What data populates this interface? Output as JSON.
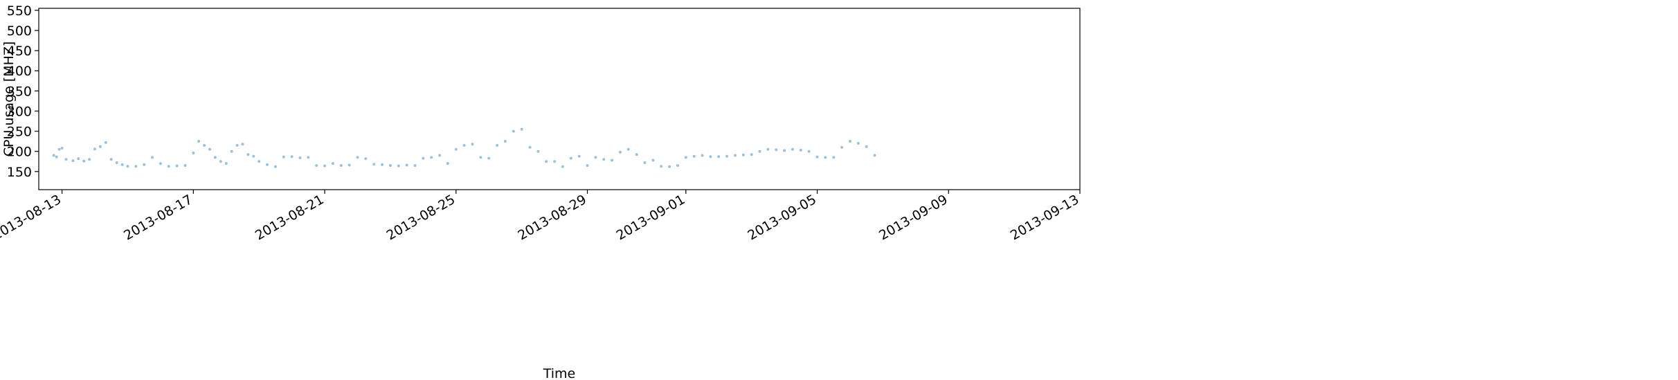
{
  "chart_data": {
    "type": "scatter",
    "title": "",
    "xlabel": "Time",
    "ylabel": "CPU usage [MHZ]",
    "color": "#1f77b4",
    "point_alpha": 0.45,
    "grid": false,
    "legend": "none",
    "xlim": [
      "2013-08-12 07:00",
      "2013-09-13 00:00"
    ],
    "ylim": [
      105,
      555
    ],
    "y_ticks": [
      150,
      200,
      250,
      300,
      350,
      400,
      450,
      500,
      550
    ],
    "x_ticks": [
      "2013-08-13",
      "2013-08-17",
      "2013-08-21",
      "2013-08-25",
      "2013-08-29",
      "2013-09-01",
      "2013-09-05",
      "2013-09-09",
      "2013-09-13"
    ],
    "series": [
      {
        "points": [
          [
            "2013-08-12 18:00",
            190
          ],
          [
            "2013-08-12 20:00",
            186
          ],
          [
            "2013-08-12 22:00",
            205
          ],
          [
            "2013-08-13 00:00",
            208
          ],
          [
            "2013-08-13 03:00",
            180
          ],
          [
            "2013-08-13 08:00",
            177
          ],
          [
            "2013-08-13 12:00",
            182
          ],
          [
            "2013-08-13 16:00",
            176
          ],
          [
            "2013-08-13 20:00",
            180
          ],
          [
            "2013-08-14 00:00",
            206
          ],
          [
            "2013-08-14 04:00",
            212
          ],
          [
            "2013-08-14 08:00",
            222
          ],
          [
            "2013-08-14 12:00",
            180
          ],
          [
            "2013-08-14 16:00",
            172
          ],
          [
            "2013-08-14 20:00",
            167
          ],
          [
            "2013-08-15 00:00",
            163
          ],
          [
            "2013-08-15 06:00",
            163
          ],
          [
            "2013-08-15 12:00",
            167
          ],
          [
            "2013-08-15 18:00",
            185
          ],
          [
            "2013-08-16 00:00",
            170
          ],
          [
            "2013-08-16 06:00",
            163
          ],
          [
            "2013-08-16 12:00",
            164
          ],
          [
            "2013-08-16 18:00",
            165
          ],
          [
            "2013-08-17 00:00",
            196
          ],
          [
            "2013-08-17 04:00",
            225
          ],
          [
            "2013-08-17 08:00",
            215
          ],
          [
            "2013-08-17 12:00",
            205
          ],
          [
            "2013-08-17 16:00",
            185
          ],
          [
            "2013-08-17 20:00",
            175
          ],
          [
            "2013-08-18 00:00",
            170
          ],
          [
            "2013-08-18 04:00",
            200
          ],
          [
            "2013-08-18 08:00",
            215
          ],
          [
            "2013-08-18 12:00",
            218
          ],
          [
            "2013-08-18 16:00",
            192
          ],
          [
            "2013-08-18 20:00",
            188
          ],
          [
            "2013-08-19 00:00",
            175
          ],
          [
            "2013-08-19 06:00",
            167
          ],
          [
            "2013-08-19 12:00",
            162
          ],
          [
            "2013-08-19 18:00",
            186
          ],
          [
            "2013-08-20 00:00",
            187
          ],
          [
            "2013-08-20 06:00",
            184
          ],
          [
            "2013-08-20 12:00",
            185
          ],
          [
            "2013-08-20 18:00",
            165
          ],
          [
            "2013-08-21 00:00",
            164
          ],
          [
            "2013-08-21 06:00",
            170
          ],
          [
            "2013-08-21 12:00",
            165
          ],
          [
            "2013-08-21 18:00",
            166
          ],
          [
            "2013-08-22 00:00",
            185
          ],
          [
            "2013-08-22 06:00",
            182
          ],
          [
            "2013-08-22 12:00",
            168
          ],
          [
            "2013-08-22 18:00",
            167
          ],
          [
            "2013-08-23 00:00",
            165
          ],
          [
            "2013-08-23 06:00",
            164
          ],
          [
            "2013-08-23 12:00",
            166
          ],
          [
            "2013-08-23 18:00",
            165
          ],
          [
            "2013-08-24 00:00",
            183
          ],
          [
            "2013-08-24 06:00",
            185
          ],
          [
            "2013-08-24 12:00",
            190
          ],
          [
            "2013-08-24 18:00",
            170
          ],
          [
            "2013-08-25 00:00",
            205
          ],
          [
            "2013-08-25 06:00",
            215
          ],
          [
            "2013-08-25 12:00",
            218
          ],
          [
            "2013-08-25 18:00",
            185
          ],
          [
            "2013-08-26 00:00",
            183
          ],
          [
            "2013-08-26 06:00",
            215
          ],
          [
            "2013-08-26 12:00",
            225
          ],
          [
            "2013-08-26 18:00",
            250
          ],
          [
            "2013-08-27 00:00",
            255
          ],
          [
            "2013-08-27 06:00",
            210
          ],
          [
            "2013-08-27 12:00",
            200
          ],
          [
            "2013-08-27 18:00",
            175
          ],
          [
            "2013-08-28 00:00",
            175
          ],
          [
            "2013-08-28 06:00",
            162
          ],
          [
            "2013-08-28 12:00",
            183
          ],
          [
            "2013-08-28 18:00",
            188
          ],
          [
            "2013-08-29 00:00",
            165
          ],
          [
            "2013-08-29 06:00",
            185
          ],
          [
            "2013-08-29 12:00",
            180
          ],
          [
            "2013-08-29 18:00",
            178
          ],
          [
            "2013-08-30 00:00",
            198
          ],
          [
            "2013-08-30 06:00",
            205
          ],
          [
            "2013-08-30 12:00",
            192
          ],
          [
            "2013-08-30 18:00",
            172
          ],
          [
            "2013-08-31 00:00",
            178
          ],
          [
            "2013-08-31 06:00",
            163
          ],
          [
            "2013-08-31 12:00",
            162
          ],
          [
            "2013-08-31 18:00",
            165
          ],
          [
            "2013-09-01 00:00",
            185
          ],
          [
            "2013-09-01 06:00",
            188
          ],
          [
            "2013-09-01 12:00",
            190
          ],
          [
            "2013-09-01 18:00",
            187
          ],
          [
            "2013-09-02 00:00",
            187
          ],
          [
            "2013-09-02 06:00",
            188
          ],
          [
            "2013-09-02 12:00",
            190
          ],
          [
            "2013-09-02 18:00",
            191
          ],
          [
            "2013-09-03 00:00",
            192
          ],
          [
            "2013-09-03 06:00",
            200
          ],
          [
            "2013-09-03 12:00",
            205
          ],
          [
            "2013-09-03 18:00",
            204
          ],
          [
            "2013-09-04 00:00",
            202
          ],
          [
            "2013-09-04 06:00",
            205
          ],
          [
            "2013-09-04 12:00",
            203
          ],
          [
            "2013-09-04 18:00",
            200
          ],
          [
            "2013-09-05 00:00",
            186
          ],
          [
            "2013-09-05 06:00",
            185
          ],
          [
            "2013-09-05 12:00",
            185
          ],
          [
            "2013-09-05 18:00",
            210
          ],
          [
            "2013-09-06 00:00",
            225
          ],
          [
            "2013-09-06 06:00",
            220
          ],
          [
            "2013-09-06 12:00",
            212
          ],
          [
            "2013-09-06 18:00",
            190
          ]
        ]
      }
    ]
  }
}
